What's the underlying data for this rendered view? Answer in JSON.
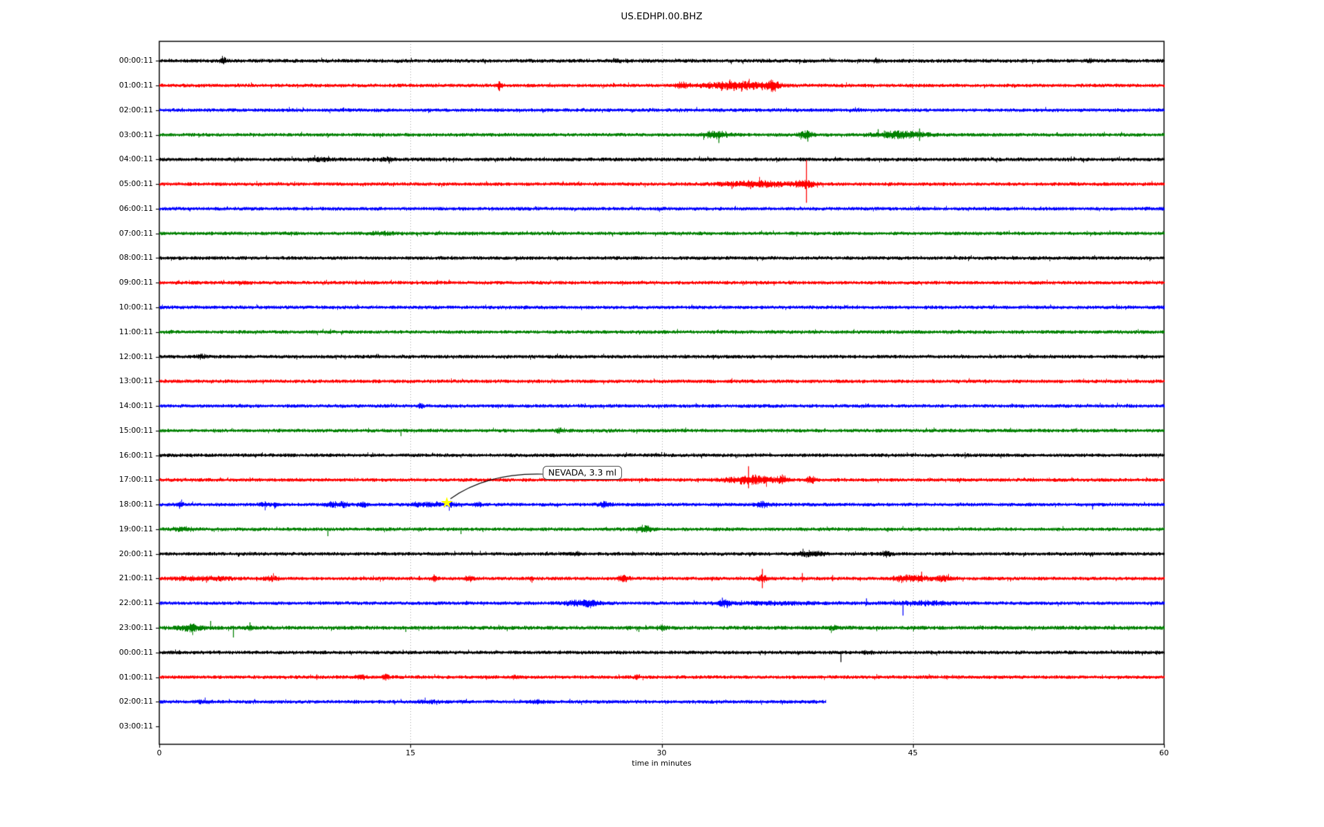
{
  "chart_data": {
    "type": "line",
    "subtype": "seismogram-dayplot",
    "title": "US.EDHPI.00.BHZ",
    "xlabel": "time in minutes",
    "xlim": [
      0,
      60
    ],
    "xticks": [
      "0",
      "15",
      "30",
      "45",
      "60"
    ],
    "xtick_values": [
      0,
      15,
      30,
      45,
      60
    ],
    "grid": {
      "vertical_dotted_at_minutes": [
        15,
        30,
        45
      ],
      "color": "#999999"
    },
    "legend": "none",
    "trace_palette": [
      "#000000",
      "#ff0000",
      "#0000ff",
      "#008000"
    ],
    "annotation": {
      "text": "NEVADA, 3.3 ml",
      "row_index": 18,
      "row_label": "18:00:11",
      "minute": 17.1,
      "marker": "yellow-star"
    },
    "rows": [
      {
        "label": "00:00:11",
        "color": "#000000",
        "end": 60,
        "amp": 2.4,
        "events": [
          {
            "m": 3.8,
            "w": 0.12,
            "a": 1.2
          },
          {
            "m": 27.4,
            "w": 0.15,
            "a": 0.5
          },
          {
            "m": 42.8,
            "w": 0.1,
            "a": 0.8
          },
          {
            "m": 55.6,
            "w": 0.1,
            "a": 0.7
          }
        ],
        "spikes": [
          {
            "m": 3.8,
            "u": 4,
            "d": 3
          }
        ]
      },
      {
        "label": "01:00:11",
        "color": "#ff0000",
        "end": 60,
        "amp": 2.3,
        "events": [
          {
            "m": 20.3,
            "w": 0.12,
            "a": 2.0
          },
          {
            "m": 31.2,
            "w": 0.25,
            "a": 1.2
          },
          {
            "m": 34.6,
            "w": 1.4,
            "a": 1.6
          },
          {
            "m": 36.6,
            "w": 0.25,
            "a": 2.2
          }
        ],
        "spikes": [
          {
            "m": 20.3,
            "u": 6,
            "d": 6
          },
          {
            "m": 33.55,
            "u": 3,
            "d": 8
          },
          {
            "m": 33.9,
            "u": 3,
            "d": 7
          },
          {
            "m": 34.3,
            "u": 3,
            "d": 8
          },
          {
            "m": 34.75,
            "u": 4,
            "d": 9
          },
          {
            "m": 35.1,
            "u": 3,
            "d": 7
          },
          {
            "m": 35.5,
            "u": 3,
            "d": 6
          },
          {
            "m": 36.0,
            "u": 3,
            "d": 7
          }
        ]
      },
      {
        "label": "02:00:11",
        "color": "#0000ff",
        "end": 60,
        "amp": 2.3,
        "events": [],
        "spikes": []
      },
      {
        "label": "03:00:11",
        "color": "#008000",
        "end": 60,
        "amp": 2.3,
        "events": [
          {
            "m": 33.2,
            "w": 0.5,
            "a": 1.6
          },
          {
            "m": 38.6,
            "w": 0.3,
            "a": 1.6
          },
          {
            "m": 44.3,
            "w": 1.1,
            "a": 1.4
          }
        ],
        "spikes": [
          {
            "m": 33.4,
            "u": 4,
            "d": 12
          },
          {
            "m": 38.7,
            "u": 4,
            "d": 10
          },
          {
            "m": 42.9,
            "u": 8,
            "d": 4
          },
          {
            "m": 43.3,
            "u": 6,
            "d": 5
          },
          {
            "m": 45.4,
            "u": 9,
            "d": 9
          }
        ]
      },
      {
        "label": "04:00:11",
        "color": "#000000",
        "end": 60,
        "amp": 2.4,
        "events": [
          {
            "m": 9.6,
            "w": 0.5,
            "a": 0.5
          },
          {
            "m": 13.6,
            "w": 0.3,
            "a": 0.6
          }
        ],
        "spikes": [
          {
            "m": 13.7,
            "u": 3,
            "d": 6
          }
        ]
      },
      {
        "label": "05:00:11",
        "color": "#ff0000",
        "end": 60,
        "amp": 2.3,
        "events": [
          {
            "m": 35.6,
            "w": 1.3,
            "a": 1.3
          },
          {
            "m": 38.5,
            "w": 0.4,
            "a": 1.6
          }
        ],
        "spikes": [
          {
            "m": 34.2,
            "u": 3,
            "d": 7
          },
          {
            "m": 35.3,
            "u": 3,
            "d": 7
          },
          {
            "m": 37.0,
            "u": 3,
            "d": 5
          },
          {
            "m": 38.63,
            "u": 35,
            "d": 27
          }
        ]
      },
      {
        "label": "06:00:11",
        "color": "#0000ff",
        "end": 60,
        "amp": 2.3,
        "events": [],
        "spikes": []
      },
      {
        "label": "07:00:11",
        "color": "#008000",
        "end": 60,
        "amp": 2.3,
        "events": [
          {
            "m": 13.3,
            "w": 0.6,
            "a": 0.5
          }
        ],
        "spikes": []
      },
      {
        "label": "08:00:11",
        "color": "#000000",
        "end": 60,
        "amp": 2.3,
        "events": [],
        "spikes": []
      },
      {
        "label": "09:00:11",
        "color": "#ff0000",
        "end": 60,
        "amp": 2.3,
        "events": [
          {
            "m": 5.0,
            "w": 0.3,
            "a": 0.4
          }
        ],
        "spikes": []
      },
      {
        "label": "10:00:11",
        "color": "#0000ff",
        "end": 60,
        "amp": 2.3,
        "events": [],
        "spikes": []
      },
      {
        "label": "11:00:11",
        "color": "#008000",
        "end": 60,
        "amp": 2.3,
        "events": [],
        "spikes": []
      },
      {
        "label": "12:00:11",
        "color": "#000000",
        "end": 60,
        "amp": 2.3,
        "events": [
          {
            "m": 2.5,
            "w": 0.2,
            "a": 0.8
          }
        ],
        "spikes": []
      },
      {
        "label": "13:00:11",
        "color": "#ff0000",
        "end": 60,
        "amp": 2.3,
        "events": [],
        "spikes": []
      },
      {
        "label": "14:00:11",
        "color": "#0000ff",
        "end": 60,
        "amp": 2.3,
        "events": [
          {
            "m": 15.6,
            "w": 0.1,
            "a": 1.0
          }
        ],
        "spikes": [
          {
            "m": 15.6,
            "u": 4,
            "d": 3
          }
        ]
      },
      {
        "label": "15:00:11",
        "color": "#008000",
        "end": 60,
        "amp": 2.3,
        "events": [
          {
            "m": 23.9,
            "w": 0.15,
            "a": 0.8
          }
        ],
        "spikes": [
          {
            "m": 14.4,
            "u": 2,
            "d": 8
          }
        ]
      },
      {
        "label": "16:00:11",
        "color": "#000000",
        "end": 60,
        "amp": 2.3,
        "events": [],
        "spikes": []
      },
      {
        "label": "17:00:11",
        "color": "#ff0000",
        "end": 60,
        "amp": 2.3,
        "events": [
          {
            "m": 35.4,
            "w": 1.0,
            "a": 1.8
          },
          {
            "m": 37.2,
            "w": 0.2,
            "a": 1.5
          },
          {
            "m": 38.9,
            "w": 0.15,
            "a": 1.8
          }
        ],
        "spikes": [
          {
            "m": 35.15,
            "u": 20,
            "d": 12
          },
          {
            "m": 35.6,
            "u": 8,
            "d": 6
          },
          {
            "m": 36.1,
            "u": 6,
            "d": 5
          },
          {
            "m": 37.2,
            "u": 8,
            "d": 6
          }
        ]
      },
      {
        "label": "18:00:11",
        "color": "#0000ff",
        "end": 60,
        "amp": 2.3,
        "events": [
          {
            "m": 1.2,
            "w": 0.15,
            "a": 1.2
          },
          {
            "m": 6.3,
            "w": 0.2,
            "a": 0.8
          },
          {
            "m": 7.0,
            "w": 0.15,
            "a": 0.8
          },
          {
            "m": 10.3,
            "w": 0.3,
            "a": 1.0
          },
          {
            "m": 11.0,
            "w": 0.2,
            "a": 0.9
          },
          {
            "m": 12.2,
            "w": 0.15,
            "a": 0.9
          },
          {
            "m": 15.3,
            "w": 0.2,
            "a": 0.7
          },
          {
            "m": 16.2,
            "w": 0.3,
            "a": 0.8
          },
          {
            "m": 17.3,
            "w": 0.25,
            "a": 1.0
          },
          {
            "m": 19.0,
            "w": 0.15,
            "a": 0.8
          },
          {
            "m": 26.6,
            "w": 0.25,
            "a": 1.2
          },
          {
            "m": 36.0,
            "w": 0.3,
            "a": 1.2
          }
        ],
        "spikes": [
          {
            "m": 1.2,
            "u": 3,
            "d": 6
          },
          {
            "m": 10.2,
            "u": 5,
            "d": 4
          },
          {
            "m": 17.3,
            "u": 4,
            "d": 4
          },
          {
            "m": 26.6,
            "u": 5,
            "d": 4
          },
          {
            "m": 36.0,
            "u": 5,
            "d": 5
          },
          {
            "m": 55.7,
            "u": 2,
            "d": 7
          }
        ]
      },
      {
        "label": "19:00:11",
        "color": "#008000",
        "end": 60,
        "amp": 2.3,
        "events": [
          {
            "m": 1.5,
            "w": 0.5,
            "a": 0.6
          },
          {
            "m": 29.0,
            "w": 0.3,
            "a": 1.3
          }
        ],
        "spikes": [
          {
            "m": 10.05,
            "u": 2,
            "d": 10
          },
          {
            "m": 18.0,
            "u": 2,
            "d": 7
          },
          {
            "m": 29.0,
            "u": 6,
            "d": 4
          },
          {
            "m": 43.5,
            "u": 2,
            "d": 4
          }
        ]
      },
      {
        "label": "20:00:11",
        "color": "#000000",
        "end": 60,
        "amp": 2.3,
        "events": [
          {
            "m": 24.9,
            "w": 0.2,
            "a": 0.6
          },
          {
            "m": 38.9,
            "w": 0.5,
            "a": 1.2
          },
          {
            "m": 43.4,
            "w": 0.2,
            "a": 1.2
          }
        ],
        "spikes": [
          {
            "m": 38.5,
            "u": 4,
            "d": 4
          },
          {
            "m": 39.2,
            "u": 4,
            "d": 4
          },
          {
            "m": 43.4,
            "u": 4,
            "d": 4
          }
        ]
      },
      {
        "label": "21:00:11",
        "color": "#ff0000",
        "end": 60,
        "amp": 2.3,
        "events": [
          {
            "m": 2.5,
            "w": 1.2,
            "a": 0.7
          },
          {
            "m": 6.7,
            "w": 0.3,
            "a": 0.8
          },
          {
            "m": 16.4,
            "w": 0.15,
            "a": 1.0
          },
          {
            "m": 18.5,
            "w": 0.2,
            "a": 1.0
          },
          {
            "m": 22.2,
            "w": 0.1,
            "a": 0.8
          },
          {
            "m": 27.7,
            "w": 0.25,
            "a": 1.2
          },
          {
            "m": 36.0,
            "w": 0.25,
            "a": 1.5
          },
          {
            "m": 44.9,
            "w": 0.8,
            "a": 1.2
          },
          {
            "m": 46.8,
            "w": 0.3,
            "a": 1.0
          }
        ],
        "spikes": [
          {
            "m": 2.8,
            "u": 3,
            "d": 6
          },
          {
            "m": 6.7,
            "u": 3,
            "d": 5
          },
          {
            "m": 16.4,
            "u": 6,
            "d": 5
          },
          {
            "m": 22.25,
            "u": 2,
            "d": 6
          },
          {
            "m": 27.7,
            "u": 4,
            "d": 4
          },
          {
            "m": 36.0,
            "u": 14,
            "d": 14
          },
          {
            "m": 38.4,
            "u": 8,
            "d": 5
          },
          {
            "m": 40.2,
            "u": 5,
            "d": 4
          },
          {
            "m": 44.6,
            "u": 6,
            "d": 5
          },
          {
            "m": 45.5,
            "u": 10,
            "d": 4
          }
        ]
      },
      {
        "label": "22:00:11",
        "color": "#0000ff",
        "end": 60,
        "amp": 2.3,
        "events": [
          {
            "m": 25.4,
            "w": 0.7,
            "a": 1.3
          },
          {
            "m": 33.7,
            "w": 0.3,
            "a": 1.2
          },
          {
            "m": 37.0,
            "w": 2.0,
            "a": 0.4
          },
          {
            "m": 45.8,
            "w": 1.2,
            "a": 0.7
          }
        ],
        "spikes": [
          {
            "m": 24.8,
            "u": 5,
            "d": 4
          },
          {
            "m": 25.5,
            "u": 4,
            "d": 5
          },
          {
            "m": 33.6,
            "u": 8,
            "d": 3
          },
          {
            "m": 33.9,
            "u": 3,
            "d": 7
          },
          {
            "m": 42.2,
            "u": 7,
            "d": 3
          },
          {
            "m": 44.4,
            "u": 2,
            "d": 18
          }
        ]
      },
      {
        "label": "23:00:11",
        "color": "#008000",
        "end": 60,
        "amp": 2.5,
        "events": [
          {
            "m": 1.9,
            "w": 0.5,
            "a": 1.2
          },
          {
            "m": 5.4,
            "w": 0.15,
            "a": 0.8
          },
          {
            "m": 30.0,
            "w": 0.2,
            "a": 0.8
          },
          {
            "m": 40.2,
            "w": 0.15,
            "a": 0.7
          }
        ],
        "spikes": [
          {
            "m": 2.0,
            "u": 6,
            "d": 4
          },
          {
            "m": 3.05,
            "u": 10,
            "d": 3
          },
          {
            "m": 4.4,
            "u": 3,
            "d": 14
          },
          {
            "m": 5.4,
            "u": 8,
            "d": 3
          },
          {
            "m": 14.7,
            "u": 2,
            "d": 6
          },
          {
            "m": 28.6,
            "u": 2,
            "d": 6
          }
        ]
      },
      {
        "label": "00:00:11",
        "color": "#000000",
        "end": 60,
        "amp": 2.3,
        "events": [
          {
            "m": 42.3,
            "w": 0.2,
            "a": 0.5
          }
        ],
        "spikes": [
          {
            "m": 40.7,
            "u": 2,
            "d": 14
          }
        ]
      },
      {
        "label": "01:00:11",
        "color": "#ff0000",
        "end": 60,
        "amp": 2.3,
        "events": [
          {
            "m": 12.0,
            "w": 0.2,
            "a": 0.8
          },
          {
            "m": 13.5,
            "w": 0.15,
            "a": 0.9
          },
          {
            "m": 21.2,
            "w": 0.15,
            "a": 0.6
          },
          {
            "m": 28.5,
            "w": 0.1,
            "a": 0.8
          }
        ],
        "spikes": [
          {
            "m": 9.4,
            "u": 4,
            "d": 4
          },
          {
            "m": 13.5,
            "u": 5,
            "d": 5
          },
          {
            "m": 28.5,
            "u": 4,
            "d": 4
          }
        ]
      },
      {
        "label": "02:00:11",
        "color": "#0000ff",
        "end": 39.8,
        "amp": 2.3,
        "events": [
          {
            "m": 2.6,
            "w": 0.3,
            "a": 0.5
          },
          {
            "m": 16.0,
            "w": 0.4,
            "a": 0.4
          },
          {
            "m": 22.6,
            "w": 0.3,
            "a": 0.5
          }
        ],
        "spikes": []
      },
      {
        "label": "03:00:11",
        "color": "#008000",
        "end": 0,
        "amp": 0,
        "events": [],
        "spikes": []
      }
    ]
  }
}
